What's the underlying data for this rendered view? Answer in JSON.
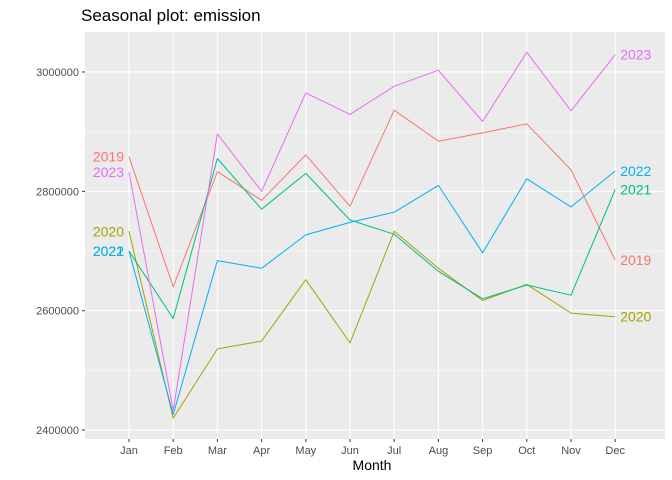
{
  "chart_data": {
    "type": "line",
    "title": "Seasonal plot: emission",
    "xlabel": "Month",
    "ylabel": "",
    "categories": [
      "Jan",
      "Feb",
      "Mar",
      "Apr",
      "May",
      "Jun",
      "Jul",
      "Aug",
      "Sep",
      "Oct",
      "Nov",
      "Dec"
    ],
    "ylim": [
      2385000,
      3067000
    ],
    "yticks": [
      2400000,
      2600000,
      2800000,
      3000000
    ],
    "ytick_labels": [
      "2400000",
      "2600000",
      "2800000",
      "3000000"
    ],
    "grid": true,
    "legend": "none (series labeled at line ends)",
    "series": [
      {
        "name": "2019",
        "color": "#F8766D",
        "values": [
          2858000,
          2640000,
          2833000,
          2785000,
          2861000,
          2775000,
          2936000,
          2884000,
          2898000,
          2913000,
          2836000,
          2685000
        ]
      },
      {
        "name": "2020",
        "color": "#A3A500",
        "values": [
          2733000,
          2420000,
          2536000,
          2549000,
          2652000,
          2546000,
          2733000,
          2671000,
          2617000,
          2644000,
          2596000,
          2590000
        ]
      },
      {
        "name": "2021",
        "color": "#00BF7D",
        "values": [
          2700000,
          2587000,
          2855000,
          2770000,
          2830000,
          2752000,
          2728000,
          2666000,
          2620000,
          2643000,
          2626000,
          2803000
        ]
      },
      {
        "name": "2022",
        "color": "#00B0F6",
        "values": [
          2700000,
          2426000,
          2684000,
          2671000,
          2727000,
          2748000,
          2765000,
          2810000,
          2697000,
          2821000,
          2774000,
          2834000
        ]
      },
      {
        "name": "2023",
        "color": "#E76BF3",
        "values": [
          2832000,
          2433000,
          2896000,
          2800000,
          2965000,
          2929000,
          2976000,
          3003000,
          2917000,
          3033000,
          2935000,
          3029000
        ]
      }
    ]
  }
}
